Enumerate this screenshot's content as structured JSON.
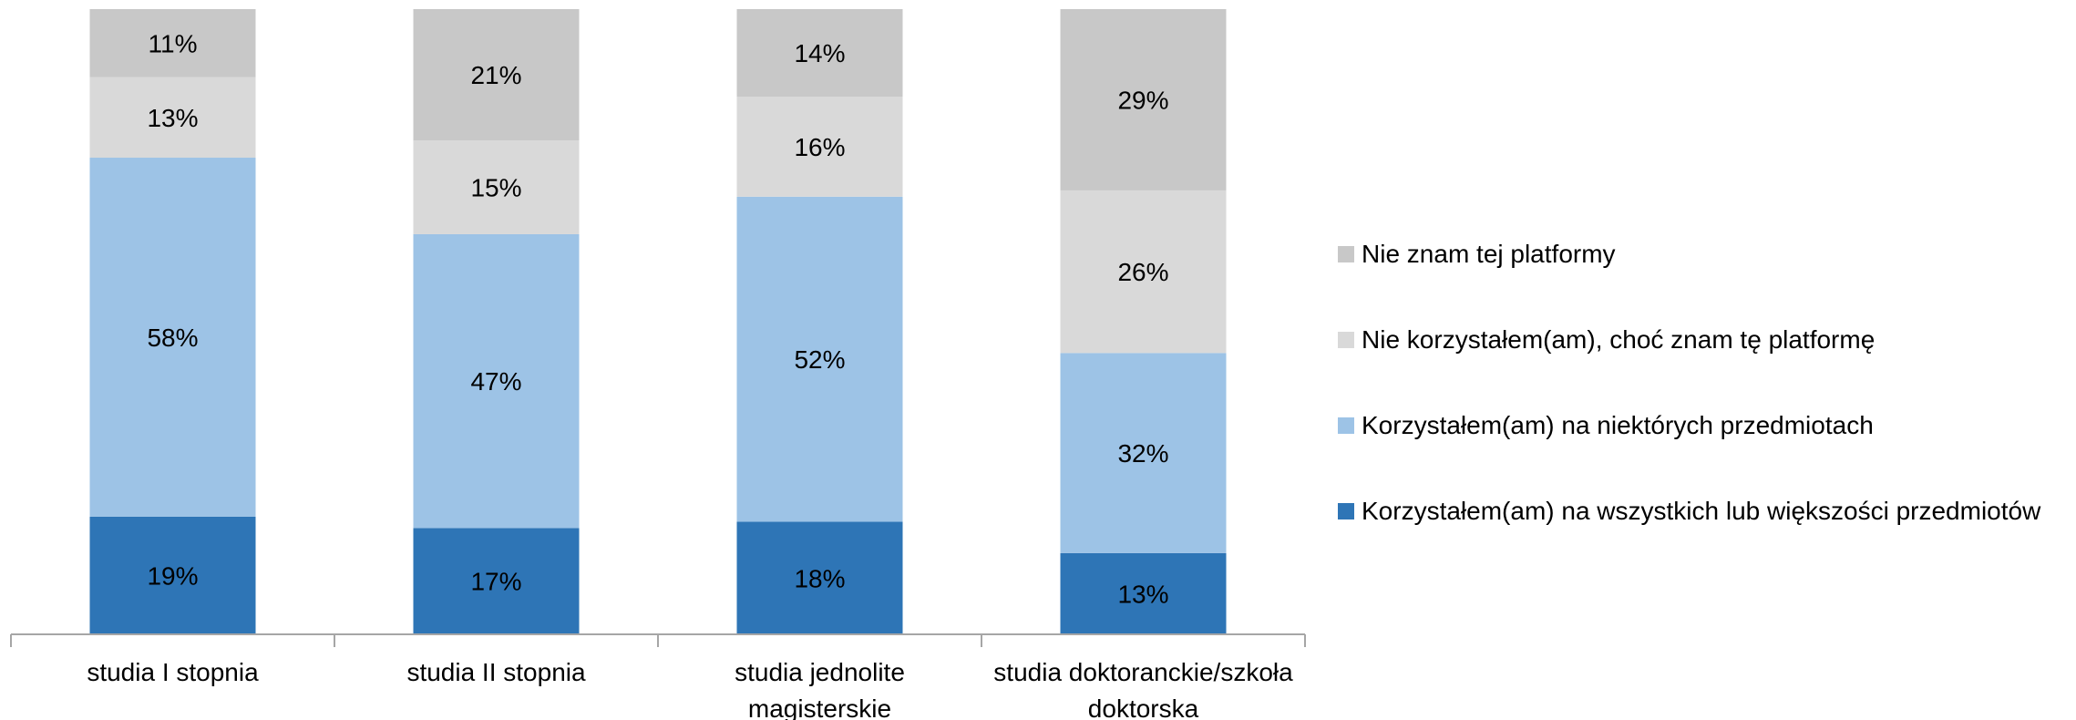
{
  "chart_data": {
    "type": "bar",
    "stacked": true,
    "categories": [
      [
        "studia I stopnia"
      ],
      [
        "studia II stopnia"
      ],
      [
        "studia jednolite",
        "magisterskie"
      ],
      [
        "studia doktoranckie/szkoła",
        "doktorska"
      ]
    ],
    "series": [
      {
        "name": "Korzystałem(am) na wszystkich lub większości przedmiotów",
        "color": "#2E75B6",
        "values": [
          19,
          17,
          18,
          13
        ]
      },
      {
        "name": "Korzystałem(am) na niektórych przedmiotach",
        "color": "#9DC3E6",
        "values": [
          58,
          47,
          52,
          32
        ]
      },
      {
        "name": "Nie korzystałem(am), choć znam tę platformę",
        "color": "#D9D9D9",
        "values": [
          13,
          15,
          16,
          26
        ]
      },
      {
        "name": "Nie znam tej platformy",
        "color": "#C8C8C8",
        "values": [
          11,
          21,
          14,
          29
        ]
      }
    ],
    "value_format": "{v}%",
    "legend_position": "right",
    "legend_order": [
      3,
      2,
      1,
      0
    ],
    "grid": false
  }
}
